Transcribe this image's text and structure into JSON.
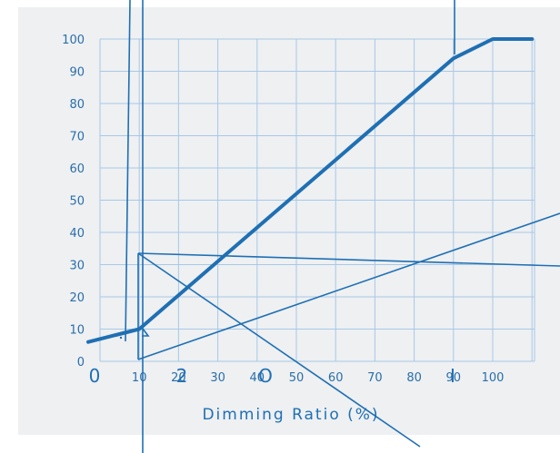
{
  "chart_data": {
    "type": "line",
    "title": "",
    "xlabel": "Dimming Ratio (%)",
    "ylabel": "",
    "xlim": [
      0,
      100
    ],
    "ylim": [
      0,
      100
    ],
    "grid": true,
    "x_ticks": [
      "10",
      "20",
      "30",
      "40",
      "50",
      "60",
      "70",
      "80",
      "90",
      "100"
    ],
    "y_ticks": [
      "0",
      "10",
      "20",
      "30",
      "40",
      "50",
      "60",
      "70",
      "80",
      "90",
      "100"
    ],
    "series": [
      {
        "x": [
          -3,
          10,
          90,
          100,
          110
        ],
        "y": [
          6,
          10,
          94,
          100,
          100
        ]
      }
    ],
    "stray_text": [
      "0",
      "2",
      "O",
      "I"
    ],
    "colors": {
      "background": "#eef0f2",
      "grid": "#a8c8e6",
      "line": "#1f6fb3",
      "text": "#2a6ea8"
    }
  }
}
